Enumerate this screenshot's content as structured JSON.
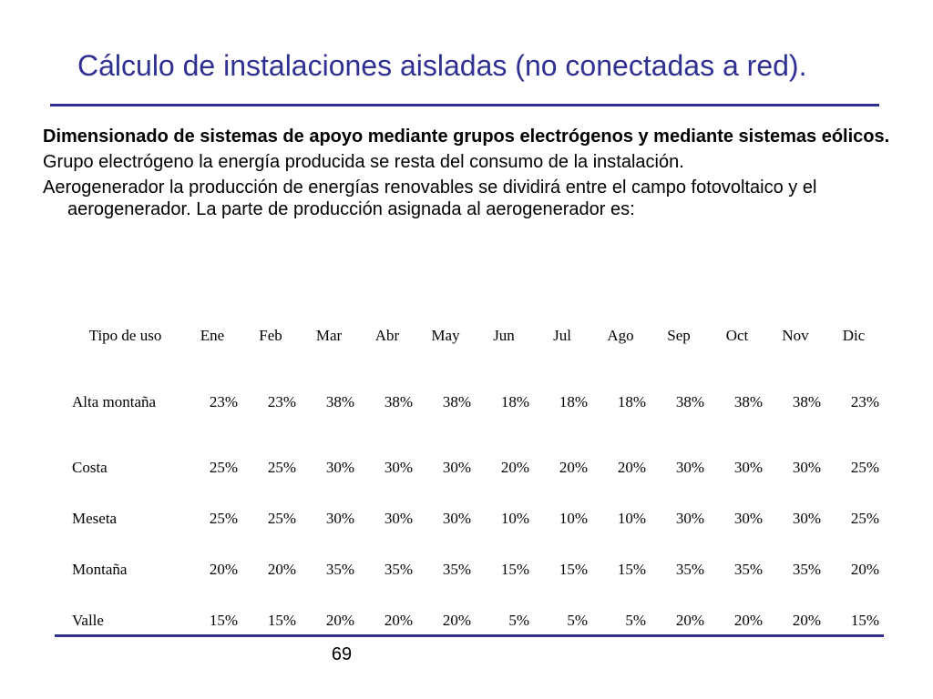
{
  "slide": {
    "title": "Cálculo de instalaciones aisladas (no conectadas a red).",
    "title_color": "#2e3192",
    "paragraphs": [
      "Dimensionado de sistemas de apoyo mediante grupos electrógenos y mediante sistemas eólicos.",
      "Grupo electrógeno la energía producida se resta del consumo de la instalación.",
      "Aerogenerador la producción de energías renovables se dividirá entre el campo fotovoltaico y el aerogenerador. La parte de producción asignada al aerogenerador es:"
    ],
    "page_number": "69"
  },
  "table": {
    "headers": [
      "Tipo de uso",
      "Ene",
      "Feb",
      "Mar",
      "Abr",
      "May",
      "Jun",
      "Jul",
      "Ago",
      "Sep",
      "Oct",
      "Nov",
      "Dic"
    ],
    "rows": [
      [
        "Alta montaña",
        "23%",
        "23%",
        "38%",
        "38%",
        "38%",
        "18%",
        "18%",
        "18%",
        "38%",
        "38%",
        "38%",
        "23%"
      ],
      [
        "Costa",
        "25%",
        "25%",
        "30%",
        "30%",
        "30%",
        "20%",
        "20%",
        "20%",
        "30%",
        "30%",
        "30%",
        "25%"
      ],
      [
        "Meseta",
        "25%",
        "25%",
        "30%",
        "30%",
        "30%",
        "10%",
        "10%",
        "10%",
        "30%",
        "30%",
        "30%",
        "25%"
      ],
      [
        "Montaña",
        "20%",
        "20%",
        "35%",
        "35%",
        "35%",
        "15%",
        "15%",
        "15%",
        "35%",
        "35%",
        "35%",
        "20%"
      ],
      [
        "Valle",
        "15%",
        "15%",
        "20%",
        "20%",
        "20%",
        "5%",
        "5%",
        "5%",
        "20%",
        "20%",
        "20%",
        "15%"
      ]
    ]
  }
}
